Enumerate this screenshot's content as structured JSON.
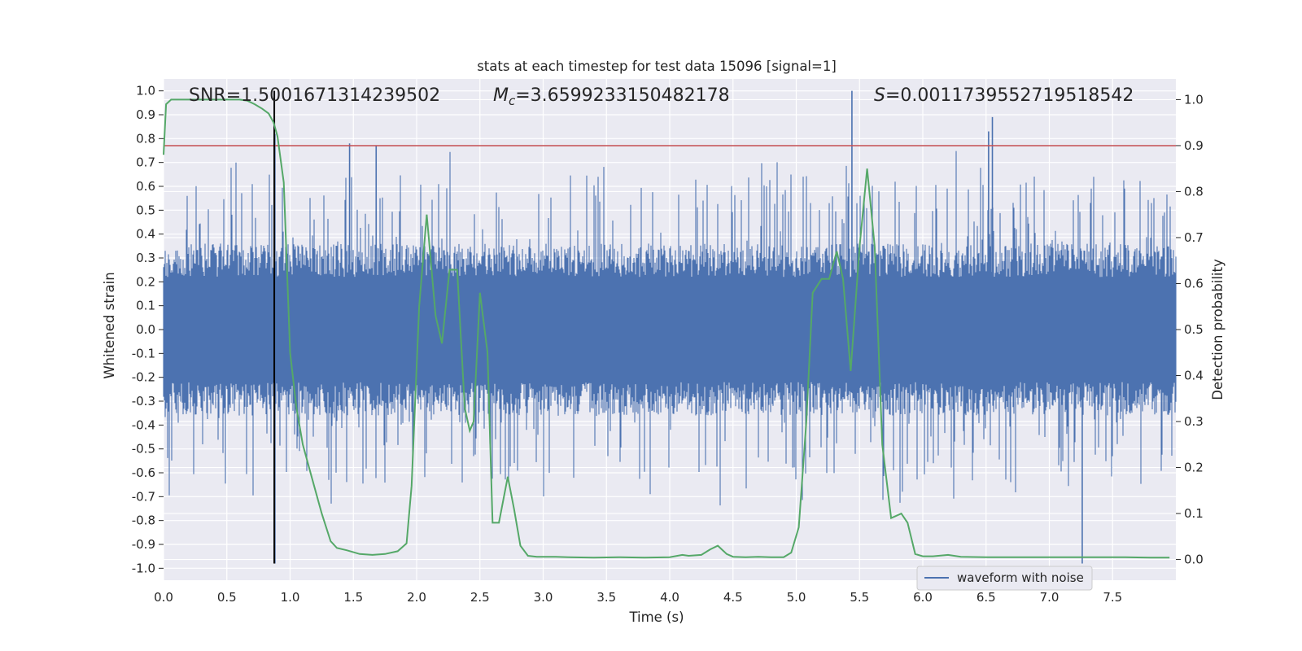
{
  "chart_data": {
    "type": "line",
    "title": "stats at each timestep for test data 15096 [signal=1]",
    "xlabel": "Time (s)",
    "ylabel_left": "Whitened strain",
    "ylabel_right": "Detection probability",
    "xlim": [
      0.0,
      8.0
    ],
    "ylim_left": [
      -1.05,
      1.05
    ],
    "ylim_right": [
      -0.045,
      1.045
    ],
    "x_ticks": [
      "0.0",
      "0.5",
      "1.0",
      "1.5",
      "2.0",
      "2.5",
      "3.0",
      "3.5",
      "4.0",
      "4.5",
      "5.0",
      "5.5",
      "6.0",
      "6.5",
      "7.0",
      "7.5"
    ],
    "y_ticks_left": [
      "1.0",
      "0.9",
      "0.8",
      "0.7",
      "0.6",
      "0.5",
      "0.4",
      "0.3",
      "0.2",
      "0.1",
      "0.0",
      "-0.1",
      "-0.2",
      "-0.3",
      "-0.4",
      "-0.5",
      "-0.6",
      "-0.7",
      "-0.8",
      "-0.9",
      "-1.0"
    ],
    "y_ticks_right": [
      "1.0",
      "0.9",
      "0.8",
      "0.7",
      "0.6",
      "0.5",
      "0.4",
      "0.3",
      "0.2",
      "0.1",
      "0.0"
    ],
    "grid": true,
    "legend": {
      "entries": [
        "waveform with noise"
      ],
      "position": "lower-right"
    },
    "annotations": {
      "snr": "SNR=1.5001671314239502",
      "mc_symbol": "M",
      "mc_sub": "c",
      "mc_value": "=3.6599233150482178",
      "s_symbol": "S",
      "s_value": "=0.0011739552719518542"
    },
    "threshold": {
      "axis": "right",
      "value": 0.9,
      "color": "#c44e52"
    },
    "event_marker": {
      "x": 0.875,
      "y_range": [
        -0.98,
        1.0
      ],
      "color": "#000000"
    },
    "series": [
      {
        "name": "waveform with noise",
        "axis": "left",
        "color": "#4c72b0",
        "description": "noise samples, dense band within about ±0.35 with spikes up to ±0.8",
        "notable_spikes": [
          {
            "x": 0.88,
            "y": -0.98
          },
          {
            "x": 5.44,
            "y": 1.0
          },
          {
            "x": 6.55,
            "y": 0.89
          },
          {
            "x": 6.52,
            "y": 0.83
          },
          {
            "x": 7.26,
            "y": -0.98
          },
          {
            "x": 1.47,
            "y": 0.78
          },
          {
            "x": 1.68,
            "y": 0.77
          },
          {
            "x": 0.88,
            "y": 0.82
          }
        ]
      },
      {
        "name": "detection probability",
        "axis": "right",
        "color": "#55a868",
        "x": [
          0.0,
          0.02,
          0.06,
          0.12,
          0.2,
          0.3,
          0.4,
          0.5,
          0.6,
          0.66,
          0.72,
          0.78,
          0.83,
          0.87,
          0.9,
          0.95,
          1.0,
          1.05,
          1.1,
          1.17,
          1.25,
          1.32,
          1.37,
          1.45,
          1.55,
          1.65,
          1.75,
          1.85,
          1.92,
          1.96,
          2.02,
          2.08,
          2.15,
          2.2,
          2.26,
          2.32,
          2.38,
          2.42,
          2.45,
          2.5,
          2.56,
          2.6,
          2.65,
          2.72,
          2.77,
          2.82,
          2.88,
          2.95,
          3.0,
          3.1,
          3.2,
          3.4,
          3.6,
          3.8,
          4.0,
          4.1,
          4.15,
          4.25,
          4.32,
          4.38,
          4.45,
          4.5,
          4.6,
          4.7,
          4.8,
          4.9,
          4.96,
          5.02,
          5.08,
          5.13,
          5.2,
          5.26,
          5.32,
          5.37,
          5.43,
          5.5,
          5.56,
          5.62,
          5.68,
          5.75,
          5.83,
          5.88,
          5.94,
          6.0,
          6.08,
          6.2,
          6.3,
          6.5,
          6.7,
          7.0,
          7.3,
          7.6,
          7.8,
          7.95
        ],
        "values": [
          0.88,
          0.99,
          1.0,
          1.0,
          1.0,
          1.0,
          1.0,
          1.0,
          1.0,
          0.998,
          0.99,
          0.98,
          0.97,
          0.95,
          0.92,
          0.82,
          0.45,
          0.33,
          0.25,
          0.18,
          0.1,
          0.04,
          0.025,
          0.02,
          0.012,
          0.01,
          0.012,
          0.018,
          0.035,
          0.16,
          0.55,
          0.75,
          0.53,
          0.47,
          0.63,
          0.63,
          0.33,
          0.28,
          0.3,
          0.58,
          0.45,
          0.08,
          0.08,
          0.18,
          0.11,
          0.03,
          0.008,
          0.006,
          0.006,
          0.006,
          0.005,
          0.004,
          0.005,
          0.004,
          0.005,
          0.01,
          0.008,
          0.01,
          0.022,
          0.03,
          0.012,
          0.006,
          0.005,
          0.006,
          0.005,
          0.005,
          0.015,
          0.07,
          0.3,
          0.58,
          0.61,
          0.61,
          0.67,
          0.61,
          0.41,
          0.68,
          0.85,
          0.68,
          0.25,
          0.09,
          0.1,
          0.08,
          0.012,
          0.007,
          0.007,
          0.01,
          0.006,
          0.005,
          0.005,
          0.005,
          0.005,
          0.005,
          0.004,
          0.004
        ]
      }
    ]
  }
}
